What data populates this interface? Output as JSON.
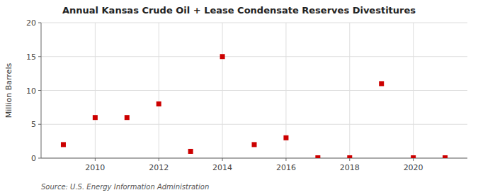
{
  "chart_data": {
    "type": "scatter",
    "title": "Annual Kansas Crude Oil + Lease Condensate Reserves Divestitures",
    "ylabel": "Million Barrels",
    "source": "Source: U.S. Energy Information Administration",
    "x": [
      2009,
      2010,
      2011,
      2012,
      2013,
      2014,
      2015,
      2016,
      2017,
      2018,
      2019,
      2020,
      2021
    ],
    "values": [
      2.0,
      6.0,
      6.0,
      8.0,
      1.0,
      15.0,
      2.0,
      3.0,
      0.05,
      0.05,
      11.0,
      0.05,
      0.05
    ],
    "color": "#cc0000",
    "marker": "square",
    "xlim": [
      2008.3,
      2021.7
    ],
    "xticks": [
      2010,
      2012,
      2014,
      2016,
      2018,
      2020
    ],
    "ylim": [
      0,
      20
    ],
    "yticks": [
      0,
      5,
      10,
      15,
      20
    ],
    "grid": true
  }
}
